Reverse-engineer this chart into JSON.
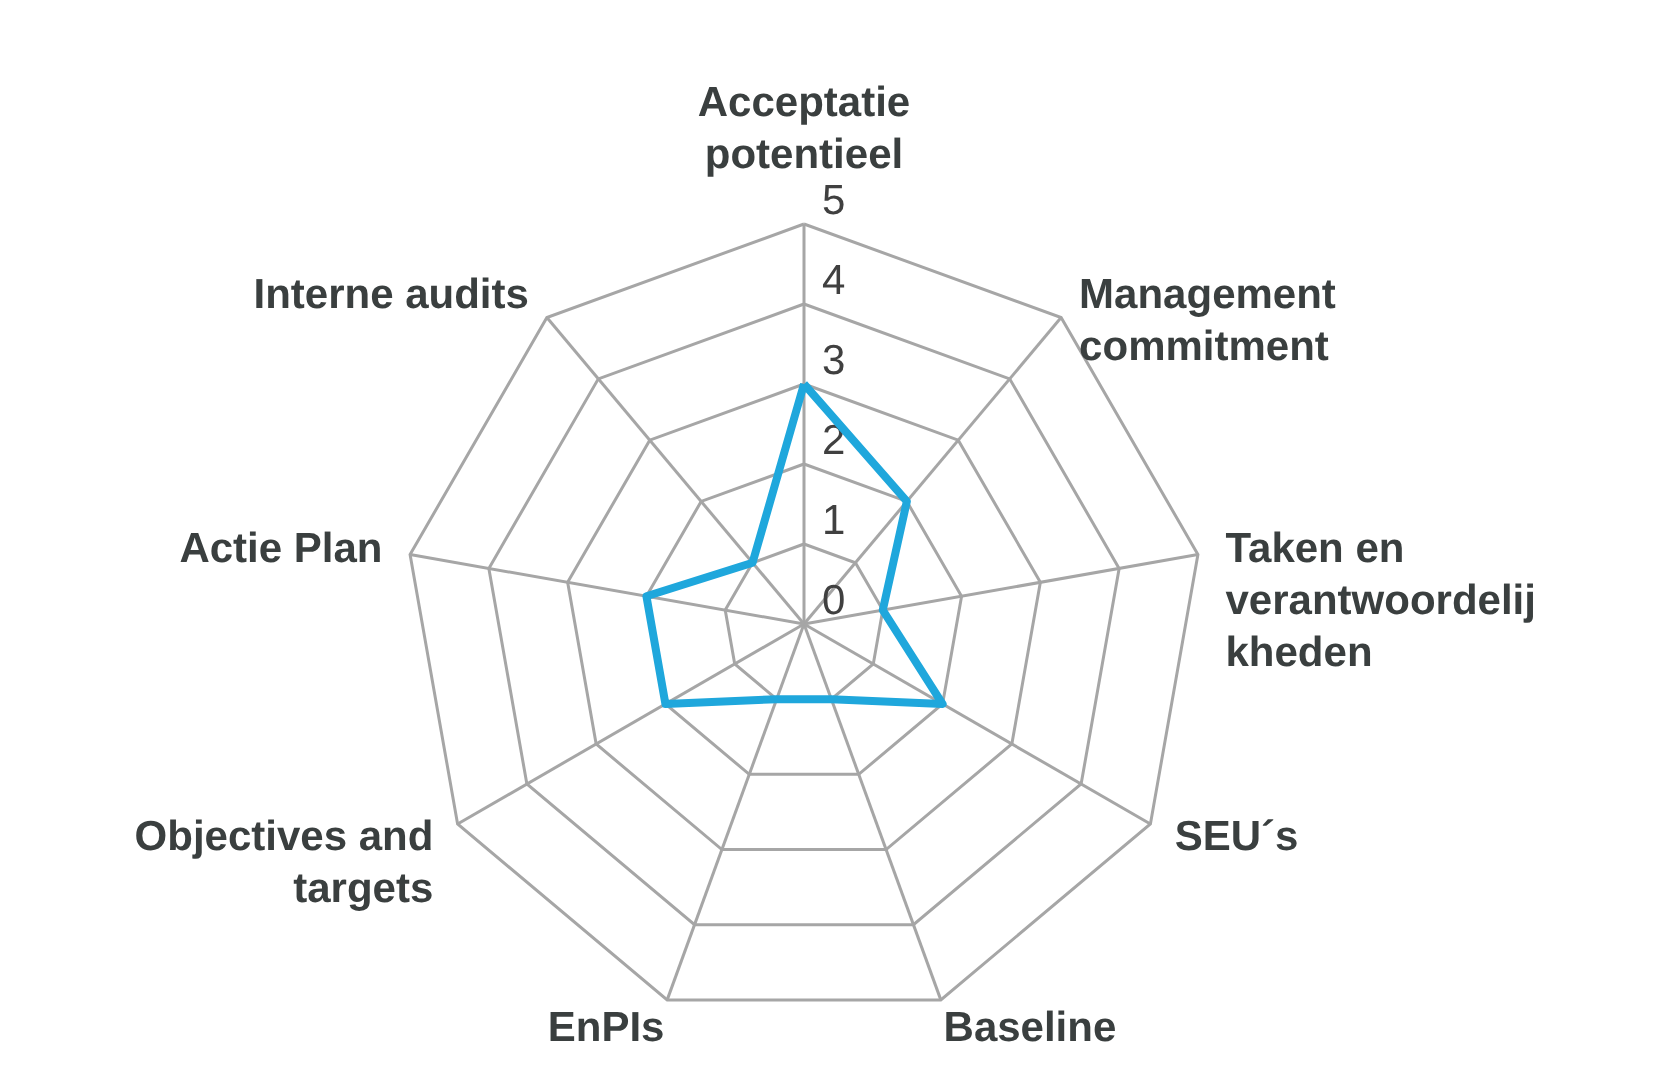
{
  "chart_data": {
    "type": "radar",
    "categories": [
      "Acceptatie potentieel",
      "Management commitment",
      "Taken en verantwoordelijkheden",
      "SEU´s",
      "Baseline",
      "EnPIs",
      "Objectives and targets",
      "Actie Plan",
      "Interne audits"
    ],
    "series": [
      {
        "color": "#1fa7dc",
        "values": [
          3,
          2,
          1,
          2,
          1,
          1,
          2,
          2,
          1
        ]
      }
    ],
    "ylim": [
      0,
      5
    ],
    "yticks": [
      0,
      1,
      2,
      3,
      4,
      5
    ],
    "grid": true
  }
}
